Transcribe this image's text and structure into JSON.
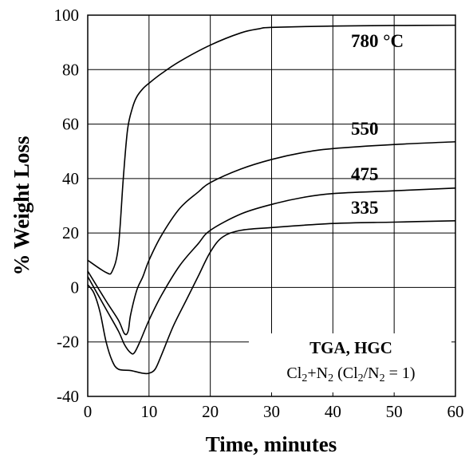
{
  "chart_data": {
    "type": "line",
    "title": "",
    "xlabel": "Time, minutes",
    "ylabel": "% Weight Loss",
    "xlim": [
      0,
      60
    ],
    "ylim": [
      -40,
      100
    ],
    "xticks": [
      0,
      10,
      20,
      30,
      40,
      50,
      60
    ],
    "yticks": [
      -40,
      -20,
      0,
      20,
      40,
      60,
      80,
      100
    ],
    "grid": true,
    "legend": "none",
    "series": [
      {
        "name": "780 °C",
        "x": [
          0,
          3,
          4,
          5,
          5.8,
          6.5,
          7.3,
          8,
          9,
          10,
          12,
          15,
          20,
          25,
          28,
          30,
          40,
          50,
          60
        ],
        "y": [
          10,
          5.5,
          6,
          15,
          40,
          58,
          66,
          70,
          73,
          75,
          78.5,
          83,
          89,
          93.5,
          95,
          95.5,
          96,
          96.2,
          96.3
        ]
      },
      {
        "name": "550",
        "x": [
          0,
          3,
          5,
          6,
          6.6,
          7,
          8,
          9,
          10,
          12,
          15,
          18,
          20,
          25,
          30,
          35,
          40,
          50,
          60
        ],
        "y": [
          6,
          -5,
          -12,
          -17,
          -16,
          -10,
          -1,
          4,
          10,
          19,
          29,
          35,
          38.5,
          43.5,
          47,
          49.5,
          51,
          52.5,
          53.5
        ]
      },
      {
        "name": "475",
        "x": [
          0,
          3,
          5,
          6,
          7,
          7.6,
          8.5,
          10,
          12,
          15,
          18,
          20,
          25,
          30,
          35,
          40,
          50,
          60
        ],
        "y": [
          4,
          -8,
          -16,
          -21,
          -24,
          -24,
          -20,
          -12,
          -3,
          8,
          16,
          21,
          27,
          30.5,
          33,
          34.5,
          35.5,
          36.5
        ]
      },
      {
        "name": "335",
        "x": [
          0,
          1,
          2,
          3,
          4,
          5,
          7,
          9,
          10,
          11,
          12,
          14,
          16,
          18,
          20,
          22,
          25,
          30,
          40,
          50,
          60
        ],
        "y": [
          1,
          -2,
          -9,
          -20,
          -27,
          -30,
          -30.5,
          -31.5,
          -31.5,
          -30,
          -25,
          -14,
          -5,
          4,
          13,
          18.5,
          21,
          22,
          23.5,
          24,
          24.5
        ]
      }
    ],
    "annotations": {
      "label_780": "780 °C",
      "label_550": "550",
      "label_475": "475",
      "label_335": "335",
      "box_line1": "TGA, HGC",
      "box_line2_a": "Cl",
      "box_line2_b": "2",
      "box_line2_c": "+N",
      "box_line2_d": "2",
      "box_line2_e": " (Cl",
      "box_line2_f": "2",
      "box_line2_g": "/N",
      "box_line2_h": "2",
      "box_line2_i": " = 1)"
    }
  }
}
